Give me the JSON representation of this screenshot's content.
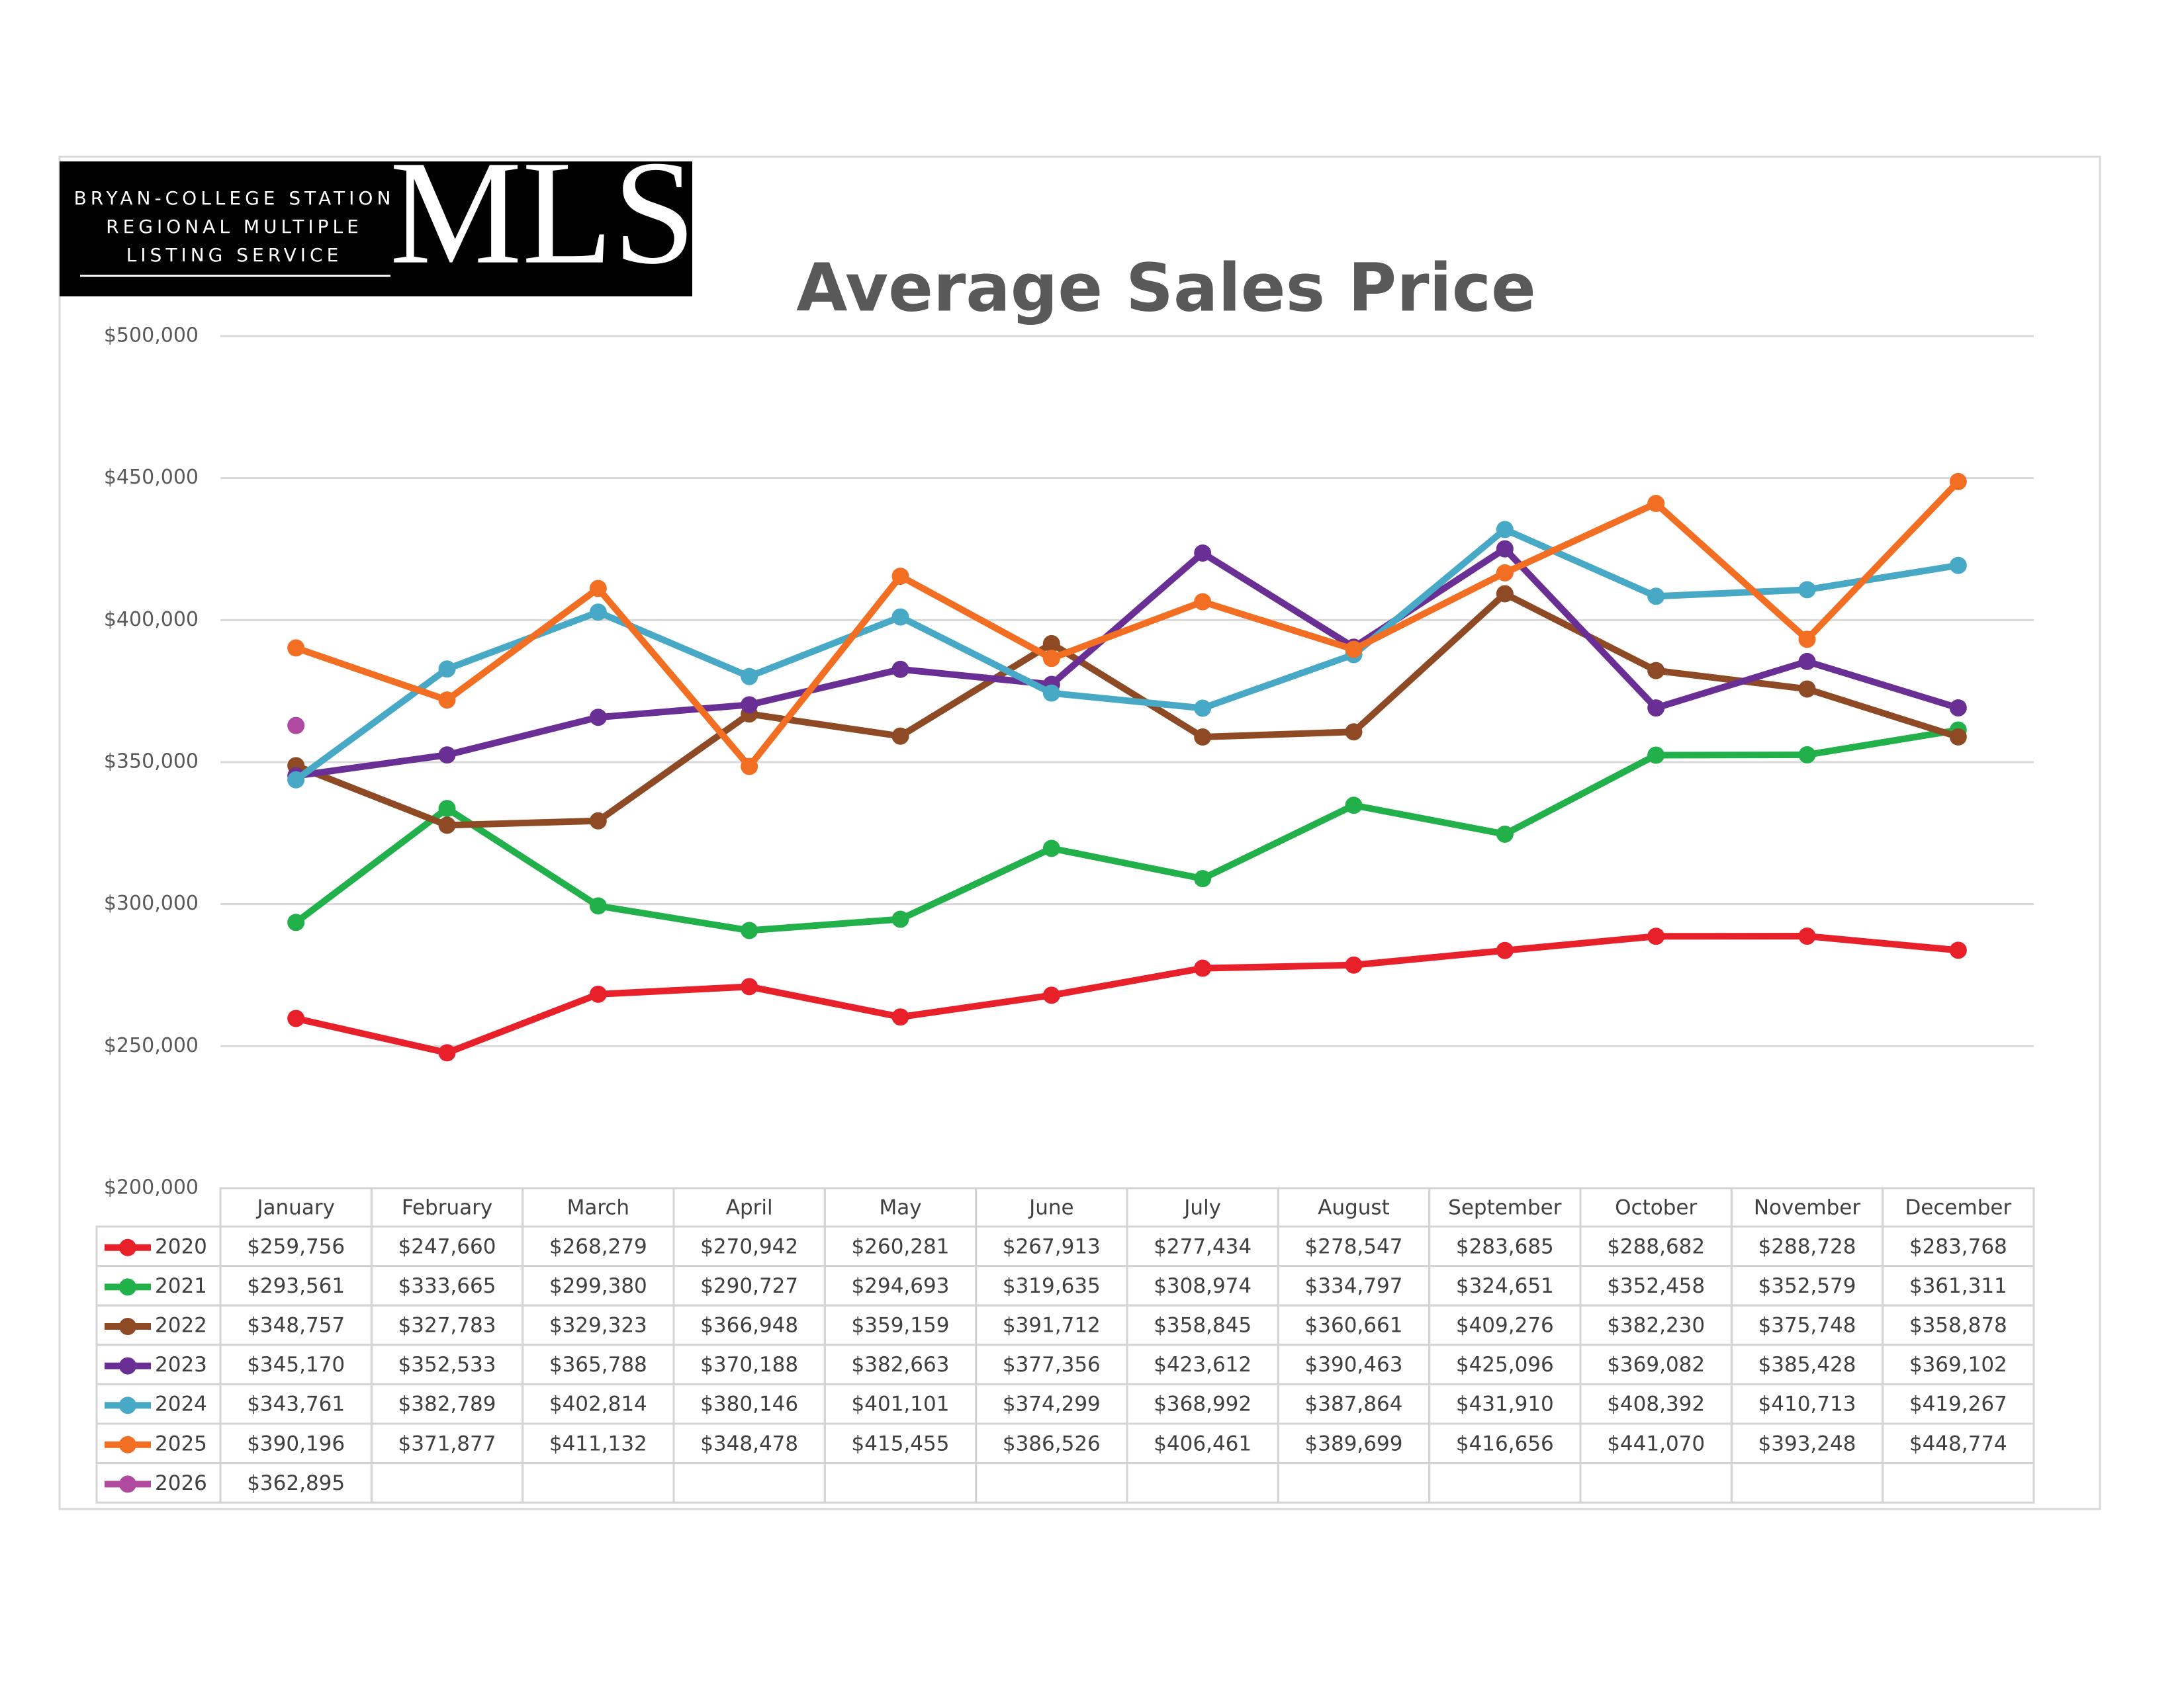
{
  "logo": {
    "line1": "BRYAN-COLLEGE STATION",
    "line2": "REGIONAL MULTIPLE",
    "line3": "LISTING SERVICE",
    "mark": "MLS"
  },
  "chart_data": {
    "type": "line",
    "title": "Average Sales Price",
    "categories": [
      "January",
      "February",
      "March",
      "April",
      "May",
      "June",
      "July",
      "August",
      "September",
      "October",
      "November",
      "December"
    ],
    "ylim": [
      200000,
      500000
    ],
    "yticks": [
      {
        "value": 200000,
        "label": "$200,000"
      },
      {
        "value": 250000,
        "label": "$250,000"
      },
      {
        "value": 300000,
        "label": "$300,000"
      },
      {
        "value": 350000,
        "label": "$350,000"
      },
      {
        "value": 400000,
        "label": "$400,000"
      },
      {
        "value": 450000,
        "label": "$450,000"
      },
      {
        "value": 500000,
        "label": "$500,000"
      }
    ],
    "grid": true,
    "series": [
      {
        "name": "2020",
        "color": "#e8202a",
        "values": [
          259756,
          247660,
          268279,
          270942,
          260281,
          267913,
          277434,
          278547,
          283685,
          288682,
          288728,
          283768
        ],
        "value_labels": [
          "$259,756",
          "$247,660",
          "$268,279",
          "$270,942",
          "$260,281",
          "$267,913",
          "$277,434",
          "$278,547",
          "$283,685",
          "$288,682",
          "$288,728",
          "$283,768"
        ]
      },
      {
        "name": "2021",
        "color": "#22b04b",
        "values": [
          293561,
          333665,
          299380,
          290727,
          294693,
          319635,
          308974,
          334797,
          324651,
          352458,
          352579,
          361311
        ],
        "value_labels": [
          "$293,561",
          "$333,665",
          "$299,380",
          "$290,727",
          "$294,693",
          "$319,635",
          "$308,974",
          "$334,797",
          "$324,651",
          "$352,458",
          "$352,579",
          "$361,311"
        ]
      },
      {
        "name": "2022",
        "color": "#8e4a25",
        "values": [
          348757,
          327783,
          329323,
          366948,
          359159,
          391712,
          358845,
          360661,
          409276,
          382230,
          375748,
          358878
        ],
        "value_labels": [
          "$348,757",
          "$327,783",
          "$329,323",
          "$366,948",
          "$359,159",
          "$391,712",
          "$358,845",
          "$360,661",
          "$409,276",
          "$382,230",
          "$375,748",
          "$358,878"
        ]
      },
      {
        "name": "2023",
        "color": "#6a2f94",
        "values": [
          345170,
          352533,
          365788,
          370188,
          382663,
          377356,
          423612,
          390463,
          425096,
          369082,
          385428,
          369102
        ],
        "value_labels": [
          "$345,170",
          "$352,533",
          "$365,788",
          "$370,188",
          "$382,663",
          "$377,356",
          "$423,612",
          "$390,463",
          "$425,096",
          "$369,082",
          "$385,428",
          "$369,102"
        ]
      },
      {
        "name": "2024",
        "color": "#48a9c6",
        "values": [
          343761,
          382789,
          402814,
          380146,
          401101,
          374299,
          368992,
          387864,
          431910,
          408392,
          410713,
          419267
        ],
        "value_labels": [
          "$343,761",
          "$382,789",
          "$402,814",
          "$380,146",
          "$401,101",
          "$374,299",
          "$368,992",
          "$387,864",
          "$431,910",
          "$408,392",
          "$410,713",
          "$419,267"
        ]
      },
      {
        "name": "2025",
        "color": "#f26e22",
        "values": [
          390196,
          371877,
          411132,
          348478,
          415455,
          386526,
          406461,
          389699,
          416656,
          441070,
          393248,
          448774
        ],
        "value_labels": [
          "$390,196",
          "$371,877",
          "$411,132",
          "$348,478",
          "$415,455",
          "$386,526",
          "$406,461",
          "$389,699",
          "$416,656",
          "$441,070",
          "$393,248",
          "$448,774"
        ]
      },
      {
        "name": "2026",
        "color": "#b04aa0",
        "values": [
          362895,
          null,
          null,
          null,
          null,
          null,
          null,
          null,
          null,
          null,
          null,
          null
        ],
        "value_labels": [
          "$362,895",
          null,
          null,
          null,
          null,
          null,
          null,
          null,
          null,
          null,
          null,
          null
        ]
      }
    ]
  }
}
